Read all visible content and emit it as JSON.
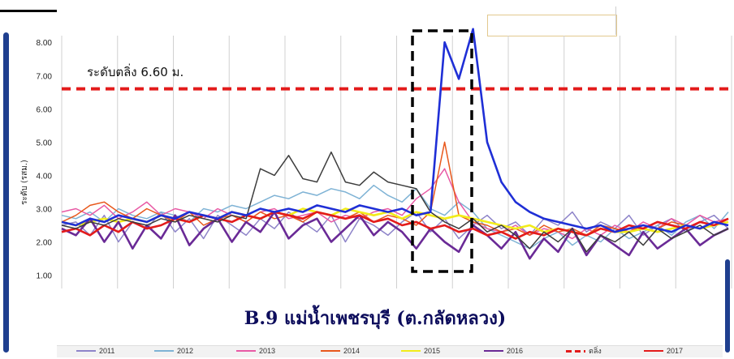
{
  "chart_data": {
    "type": "line",
    "title": "B.9 แม่น้ำเพชรบุรี  (ต.กลัดหลวง)",
    "ylabel": "ระดับ (รสม.)",
    "ylim": [
      0.6,
      8.2
    ],
    "yticks": [
      "1.00",
      "2.00",
      "3.00",
      "4.00",
      "5.00",
      "6.00",
      "7.00",
      "8.00"
    ],
    "grid": "vertical",
    "threshold": {
      "label": "ระดับตลิ่ง  6.60 ม.",
      "value": 6.6,
      "color": "#e31b1b"
    },
    "highlight_label": "",
    "series": [
      {
        "name": "2011",
        "color": "#8e84c9",
        "values": [
          2.5,
          2.6,
          2.2,
          2.8,
          2.0,
          2.6,
          2.4,
          2.9,
          2.3,
          2.7,
          2.1,
          2.8,
          2.5,
          2.2,
          2.7,
          2.4,
          2.9,
          2.6,
          2.3,
          2.8,
          2.0,
          2.7,
          2.5,
          2.2,
          2.6,
          2.9,
          2.3,
          2.7,
          2.1,
          2.5,
          2.8,
          2.4,
          2.6,
          2.2,
          2.7,
          2.5,
          2.9,
          2.3,
          2.6,
          2.4,
          2.8,
          2.2,
          2.5,
          2.7,
          2.3,
          2.6,
          2.8,
          2.4
        ]
      },
      {
        "name": "2012",
        "color": "#7fb3d5",
        "values": [
          2.8,
          2.7,
          2.9,
          2.6,
          3.0,
          2.8,
          2.7,
          2.9,
          2.8,
          2.6,
          3.0,
          2.9,
          3.1,
          3.0,
          3.2,
          3.4,
          3.3,
          3.5,
          3.4,
          3.6,
          3.5,
          3.3,
          3.7,
          3.4,
          3.2,
          3.6,
          3.0,
          2.8,
          3.2,
          2.9,
          2.4,
          2.2,
          2.0,
          1.8,
          2.1,
          2.3,
          1.9,
          2.2,
          2.0,
          2.4,
          2.1,
          2.3,
          2.5,
          2.2,
          2.6,
          2.8,
          2.4,
          2.9
        ]
      },
      {
        "name": "2013",
        "color": "#e85aa5",
        "values": [
          2.9,
          3.0,
          2.8,
          3.1,
          2.7,
          2.9,
          3.2,
          2.8,
          3.0,
          2.9,
          2.7,
          3.0,
          2.8,
          2.6,
          2.9,
          3.0,
          2.7,
          2.8,
          2.9,
          2.6,
          2.8,
          2.7,
          2.9,
          3.0,
          2.8,
          3.3,
          3.6,
          4.2,
          3.2,
          2.6,
          2.4,
          2.3,
          2.5,
          2.2,
          2.4,
          2.3,
          2.1,
          2.4,
          2.2,
          2.5,
          2.3,
          2.6,
          2.4,
          2.7,
          2.5,
          2.8,
          2.6,
          2.7
        ]
      },
      {
        "name": "2014",
        "color": "#e8581c",
        "values": [
          2.6,
          2.8,
          3.1,
          3.2,
          2.9,
          2.7,
          3.0,
          2.8,
          2.6,
          2.9,
          2.5,
          2.7,
          2.8,
          2.6,
          2.9,
          2.7,
          2.8,
          2.6,
          2.9,
          2.8,
          2.7,
          2.9,
          2.6,
          2.8,
          2.7,
          2.5,
          2.9,
          5.0,
          2.8,
          2.6,
          2.5,
          2.3,
          2.4,
          2.2,
          2.5,
          2.3,
          2.4,
          2.2,
          2.5,
          2.4,
          2.3,
          2.5,
          2.4,
          2.6,
          2.5,
          2.4,
          2.6,
          2.5
        ]
      },
      {
        "name": "2015",
        "color": "#f2ec1a",
        "values": [
          2.6,
          2.5,
          2.6,
          2.7,
          2.6,
          2.7,
          2.6,
          2.8,
          2.7,
          2.6,
          2.8,
          2.7,
          2.9,
          2.8,
          2.7,
          2.9,
          2.8,
          3.0,
          2.9,
          2.8,
          3.0,
          2.9,
          2.8,
          2.9,
          2.7,
          2.9,
          2.8,
          2.7,
          2.8,
          2.7,
          2.6,
          2.5,
          2.4,
          2.5,
          2.3,
          2.4,
          2.3,
          2.2,
          2.4,
          2.3,
          2.3,
          2.4,
          2.3,
          2.4,
          2.5,
          2.4,
          2.5,
          2.6
        ]
      },
      {
        "name": "2016",
        "color": "#6a2a96",
        "values": [
          2.4,
          2.2,
          2.7,
          2.0,
          2.6,
          1.8,
          2.5,
          2.1,
          2.8,
          1.9,
          2.4,
          2.7,
          2.0,
          2.6,
          2.3,
          2.9,
          2.1,
          2.5,
          2.7,
          2.0,
          2.4,
          2.8,
          2.2,
          2.6,
          2.3,
          1.8,
          2.4,
          2.0,
          1.7,
          2.5,
          2.2,
          1.8,
          2.3,
          1.5,
          2.1,
          1.7,
          2.4,
          1.6,
          2.2,
          1.9,
          1.6,
          2.3,
          1.8,
          2.1,
          2.4,
          1.9,
          2.2,
          2.4
        ]
      },
      {
        "name": "ตลิ่ง",
        "color": "#e31b1b",
        "dashed": true,
        "values": []
      },
      {
        "name": "2017",
        "color": "#e31b1b",
        "values": [
          2.3,
          2.4,
          2.2,
          2.5,
          2.3,
          2.6,
          2.4,
          2.5,
          2.7,
          2.6,
          2.8,
          2.7,
          2.6,
          2.8,
          2.7,
          2.9,
          2.8,
          2.7,
          2.9,
          2.8,
          2.7,
          2.8,
          2.6,
          2.7,
          2.5,
          2.6,
          2.4,
          2.5,
          2.3,
          2.4,
          2.2,
          2.3,
          2.1,
          2.3,
          2.2,
          2.4,
          2.3,
          2.2,
          2.4,
          2.3,
          2.5,
          2.4,
          2.6,
          2.5,
          2.4,
          2.6,
          2.5,
          2.7
        ]
      },
      {
        "name": "",
        "color": "#3d3d3d",
        "values": [
          2.5,
          2.4,
          2.6,
          2.5,
          2.7,
          2.6,
          2.5,
          2.7,
          2.6,
          2.8,
          2.7,
          2.6,
          2.8,
          2.7,
          4.2,
          4.0,
          4.6,
          3.9,
          3.8,
          4.7,
          3.8,
          3.7,
          4.1,
          3.8,
          3.7,
          3.6,
          2.9,
          2.6,
          2.4,
          2.7,
          2.3,
          2.5,
          2.2,
          1.8,
          2.3,
          2.0,
          2.4,
          1.7,
          2.2,
          2.0,
          2.3,
          1.9,
          2.4,
          2.1,
          2.3,
          2.5,
          2.2,
          2.4
        ]
      },
      {
        "name": "",
        "color": "#1f2fd6",
        "values": [
          2.6,
          2.5,
          2.7,
          2.6,
          2.8,
          2.7,
          2.6,
          2.8,
          2.7,
          2.9,
          2.8,
          2.7,
          2.9,
          2.8,
          3.0,
          2.9,
          3.0,
          2.9,
          3.1,
          3.0,
          2.9,
          3.1,
          3.0,
          2.9,
          3.0,
          2.8,
          2.9,
          8.0,
          6.9,
          8.4,
          5.0,
          3.8,
          3.2,
          2.9,
          2.7,
          2.6,
          2.5,
          2.4,
          2.5,
          2.3,
          2.4,
          2.5,
          2.4,
          2.3,
          2.5,
          2.4,
          2.6,
          2.5
        ]
      }
    ]
  }
}
